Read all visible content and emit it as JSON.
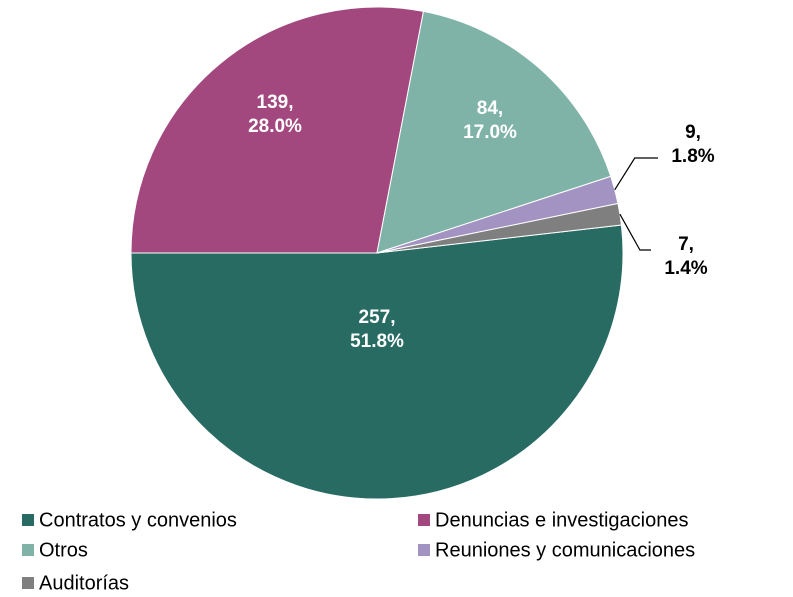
{
  "chart_data": {
    "type": "pie",
    "categories": [
      "Contratos y convenios",
      "Denuncias e investigaciones",
      "Otros",
      "Reuniones y comunicaciones",
      "Auditorías"
    ],
    "values": [
      257,
      139,
      84,
      9,
      7
    ],
    "value_labels": [
      "257,\n51.8%",
      "139,\n28.0%",
      "84,\n17.0%",
      "9,\n1.8%",
      "7,\n1.4%"
    ],
    "colors": [
      "#276b63",
      "#a3487f",
      "#7fb3a7",
      "#a393c3",
      "#7f7f7f"
    ],
    "legend": "bottom"
  }
}
